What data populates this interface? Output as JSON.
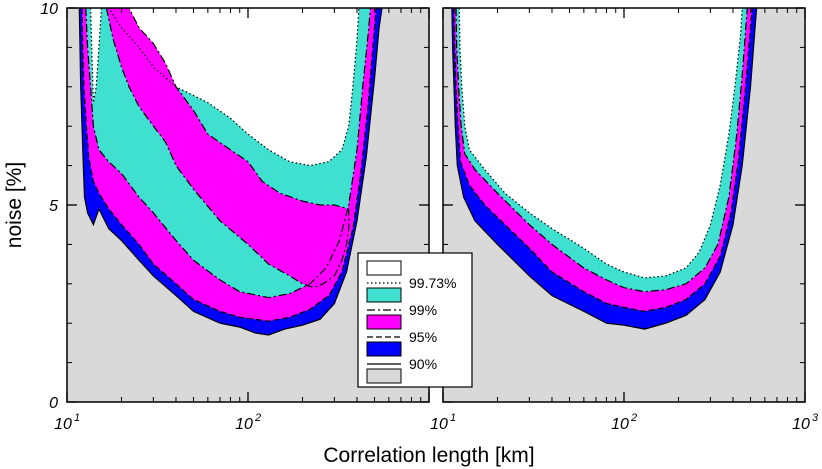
{
  "chart_data": {
    "type": "area",
    "description_free": true,
    "xlabel": "Correlation length [km]",
    "ylabel": "noise [%]",
    "xscale": "log",
    "xlim": [
      10,
      1000
    ],
    "ylim": [
      0,
      10
    ],
    "y_ticks": [
      "0",
      "5",
      "10"
    ],
    "x_tick_base": "10",
    "x_tick_exponents": [
      "1",
      "2",
      "3"
    ],
    "colors": {
      "background": "#d9d9d9",
      "p90": "#0000ff",
      "p95": "#ff00ff",
      "p99": "#40e0d0",
      "p9973": "#ffffff"
    },
    "legend": {
      "placement": "bottom-center",
      "entries": [
        {
          "label": "99.73%",
          "color": "#ffffff",
          "line": "dotted"
        },
        {
          "label": "99%",
          "color": "#40e0d0",
          "line": "dashdot"
        },
        {
          "label": "95%",
          "color": "#ff00ff",
          "line": "dashed"
        },
        {
          "label": "90%",
          "color": "#0000ff",
          "line": "solid"
        }
      ]
    },
    "panels": [
      {
        "name": "left",
        "contours": {
          "p90": [
            [
              11.7,
              10
            ],
            [
              11.8,
              9
            ],
            [
              11.9,
              8
            ],
            [
              12.1,
              7
            ],
            [
              12.3,
              6
            ],
            [
              12.5,
              5.2
            ],
            [
              13,
              4.8
            ],
            [
              14,
              4.5
            ],
            [
              15,
              4.9
            ],
            [
              17,
              4.4
            ],
            [
              20,
              4.1
            ],
            [
              25,
              3.6
            ],
            [
              30,
              3.2
            ],
            [
              40,
              2.7
            ],
            [
              50,
              2.3
            ],
            [
              70,
              2.0
            ],
            [
              90,
              1.9
            ],
            [
              110,
              1.75
            ],
            [
              130,
              1.7
            ],
            [
              160,
              1.85
            ],
            [
              200,
              1.95
            ],
            [
              250,
              2.1
            ],
            [
              300,
              2.5
            ],
            [
              350,
              3.3
            ],
            [
              400,
              4.6
            ],
            [
              450,
              6.2
            ],
            [
              500,
              8.2
            ],
            [
              530,
              9.5
            ],
            [
              550,
              10
            ]
          ],
          "p95": [
            [
              12.1,
              10
            ],
            [
              12.2,
              9
            ],
            [
              12.4,
              8
            ],
            [
              12.8,
              7
            ],
            [
              13.2,
              6.2
            ],
            [
              14,
              5.6
            ],
            [
              15,
              5.3
            ],
            [
              17,
              4.9
            ],
            [
              20,
              4.5
            ],
            [
              25,
              4.0
            ],
            [
              30,
              3.5
            ],
            [
              40,
              3.0
            ],
            [
              50,
              2.6
            ],
            [
              70,
              2.3
            ],
            [
              90,
              2.15
            ],
            [
              130,
              2.05
            ],
            [
              170,
              2.15
            ],
            [
              220,
              2.35
            ],
            [
              280,
              2.7
            ],
            [
              330,
              3.3
            ],
            [
              380,
              4.4
            ],
            [
              420,
              5.8
            ],
            [
              460,
              7.5
            ],
            [
              490,
              9.0
            ],
            [
              510,
              10
            ]
          ],
          "p99": [
            [
              12.7,
              10
            ],
            [
              13,
              9
            ],
            [
              13.5,
              8
            ],
            [
              14,
              7
            ],
            [
              15,
              6.4
            ],
            [
              17,
              6.1
            ],
            [
              20,
              5.8
            ],
            [
              25,
              5.2
            ],
            [
              30,
              4.8
            ],
            [
              40,
              4.1
            ],
            [
              50,
              3.6
            ],
            [
              70,
              3.1
            ],
            [
              90,
              2.8
            ],
            [
              130,
              2.65
            ],
            [
              170,
              2.75
            ],
            [
              220,
              3.0
            ],
            [
              270,
              3.4
            ],
            [
              320,
              4.1
            ],
            [
              360,
              5.0
            ],
            [
              400,
              6.4
            ],
            [
              430,
              8.0
            ],
            [
              460,
              9.3
            ],
            [
              475,
              10
            ]
          ],
          "p9973": [
            [
              13.5,
              10
            ],
            [
              13.7,
              9
            ],
            [
              14,
              7.6
            ],
            [
              14.5,
              8
            ],
            [
              15,
              9
            ],
            [
              15.5,
              10
            ],
            [
              17,
              10
            ],
            [
              20,
              9.5
            ],
            [
              25,
              9
            ],
            [
              30,
              8.5
            ],
            [
              40,
              8.0
            ],
            [
              60,
              7.6
            ],
            [
              80,
              7.2
            ],
            [
              100,
              6.8
            ],
            [
              130,
              6.4
            ],
            [
              170,
              6.1
            ],
            [
              220,
              6.0
            ],
            [
              280,
              6.1
            ],
            [
              330,
              6.4
            ],
            [
              360,
              7.0
            ],
            [
              380,
              8.0
            ],
            [
              400,
              9.2
            ],
            [
              410,
              10
            ]
          ]
        },
        "islands_95": [
          [
            [
              16.5,
              10
            ],
            [
              18,
              9.2
            ],
            [
              20,
              8.5
            ],
            [
              22,
              8.0
            ],
            [
              25,
              7.5
            ],
            [
              30,
              7.0
            ],
            [
              35,
              6.6
            ],
            [
              40,
              6.0
            ],
            [
              50,
              5.4
            ],
            [
              70,
              4.6
            ],
            [
              100,
              4.0
            ],
            [
              130,
              3.5
            ],
            [
              170,
              3.2
            ],
            [
              200,
              3.0
            ],
            [
              230,
              2.9
            ],
            [
              260,
              3.0
            ],
            [
              300,
              3.2
            ],
            [
              330,
              3.6
            ],
            [
              350,
              4.0
            ],
            [
              360,
              4.4
            ],
            [
              360,
              4.9
            ],
            [
              300,
              5.0
            ],
            [
              250,
              5.0
            ],
            [
              200,
              5.1
            ],
            [
              150,
              5.3
            ],
            [
              120,
              5.6
            ],
            [
              100,
              6.1
            ],
            [
              80,
              6.4
            ],
            [
              60,
              6.8
            ],
            [
              50,
              7.4
            ],
            [
              40,
              8.0
            ],
            [
              35,
              8.6
            ],
            [
              30,
              9.1
            ],
            [
              25,
              9.5
            ],
            [
              22,
              10
            ]
          ]
        ]
      },
      {
        "name": "right",
        "contours": {
          "p90": [
            [
              11.2,
              10
            ],
            [
              11.3,
              9
            ],
            [
              11.5,
              8
            ],
            [
              11.7,
              7
            ],
            [
              12,
              6
            ],
            [
              13,
              5.2
            ],
            [
              15,
              4.6
            ],
            [
              20,
              4.0
            ],
            [
              30,
              3.2
            ],
            [
              40,
              2.7
            ],
            [
              60,
              2.3
            ],
            [
              80,
              2.0
            ],
            [
              100,
              1.95
            ],
            [
              130,
              1.85
            ],
            [
              170,
              2.0
            ],
            [
              220,
              2.2
            ],
            [
              280,
              2.6
            ],
            [
              340,
              3.3
            ],
            [
              400,
              4.5
            ],
            [
              450,
              6.0
            ],
            [
              500,
              8.0
            ],
            [
              540,
              10
            ]
          ],
          "p95": [
            [
              11.5,
              10
            ],
            [
              11.6,
              9
            ],
            [
              11.8,
              8
            ],
            [
              12.1,
              7
            ],
            [
              12.5,
              6.1
            ],
            [
              14,
              5.5
            ],
            [
              17,
              5.0
            ],
            [
              22,
              4.5
            ],
            [
              30,
              3.9
            ],
            [
              40,
              3.3
            ],
            [
              60,
              2.8
            ],
            [
              80,
              2.5
            ],
            [
              100,
              2.4
            ],
            [
              130,
              2.3
            ],
            [
              170,
              2.4
            ],
            [
              220,
              2.6
            ],
            [
              280,
              3.0
            ],
            [
              340,
              3.7
            ],
            [
              390,
              4.8
            ],
            [
              430,
              6.2
            ],
            [
              470,
              8.0
            ],
            [
              510,
              10
            ]
          ],
          "p99": [
            [
              11.8,
              10
            ],
            [
              11.9,
              9
            ],
            [
              12.2,
              8
            ],
            [
              12.6,
              7
            ],
            [
              13.2,
              6.3
            ],
            [
              15,
              5.9
            ],
            [
              20,
              5.3
            ],
            [
              30,
              4.5
            ],
            [
              40,
              4.0
            ],
            [
              60,
              3.4
            ],
            [
              80,
              3.1
            ],
            [
              100,
              2.9
            ],
            [
              130,
              2.8
            ],
            [
              170,
              2.85
            ],
            [
              220,
              3.0
            ],
            [
              280,
              3.4
            ],
            [
              330,
              4.0
            ],
            [
              380,
              5.2
            ],
            [
              420,
              6.8
            ],
            [
              450,
              8.3
            ],
            [
              480,
              10
            ]
          ],
          "p9973": [
            [
              12.3,
              10
            ],
            [
              12.4,
              9
            ],
            [
              12.7,
              8
            ],
            [
              13.2,
              7
            ],
            [
              14,
              6.4
            ],
            [
              17,
              5.9
            ],
            [
              22,
              5.3
            ],
            [
              30,
              4.8
            ],
            [
              40,
              4.4
            ],
            [
              60,
              3.9
            ],
            [
              80,
              3.5
            ],
            [
              100,
              3.3
            ],
            [
              130,
              3.15
            ],
            [
              170,
              3.2
            ],
            [
              220,
              3.4
            ],
            [
              260,
              3.8
            ],
            [
              300,
              4.5
            ],
            [
              340,
              5.5
            ],
            [
              380,
              6.8
            ],
            [
              410,
              8.0
            ],
            [
              440,
              9.3
            ],
            [
              450,
              10
            ]
          ]
        },
        "islands_95": []
      }
    ]
  }
}
